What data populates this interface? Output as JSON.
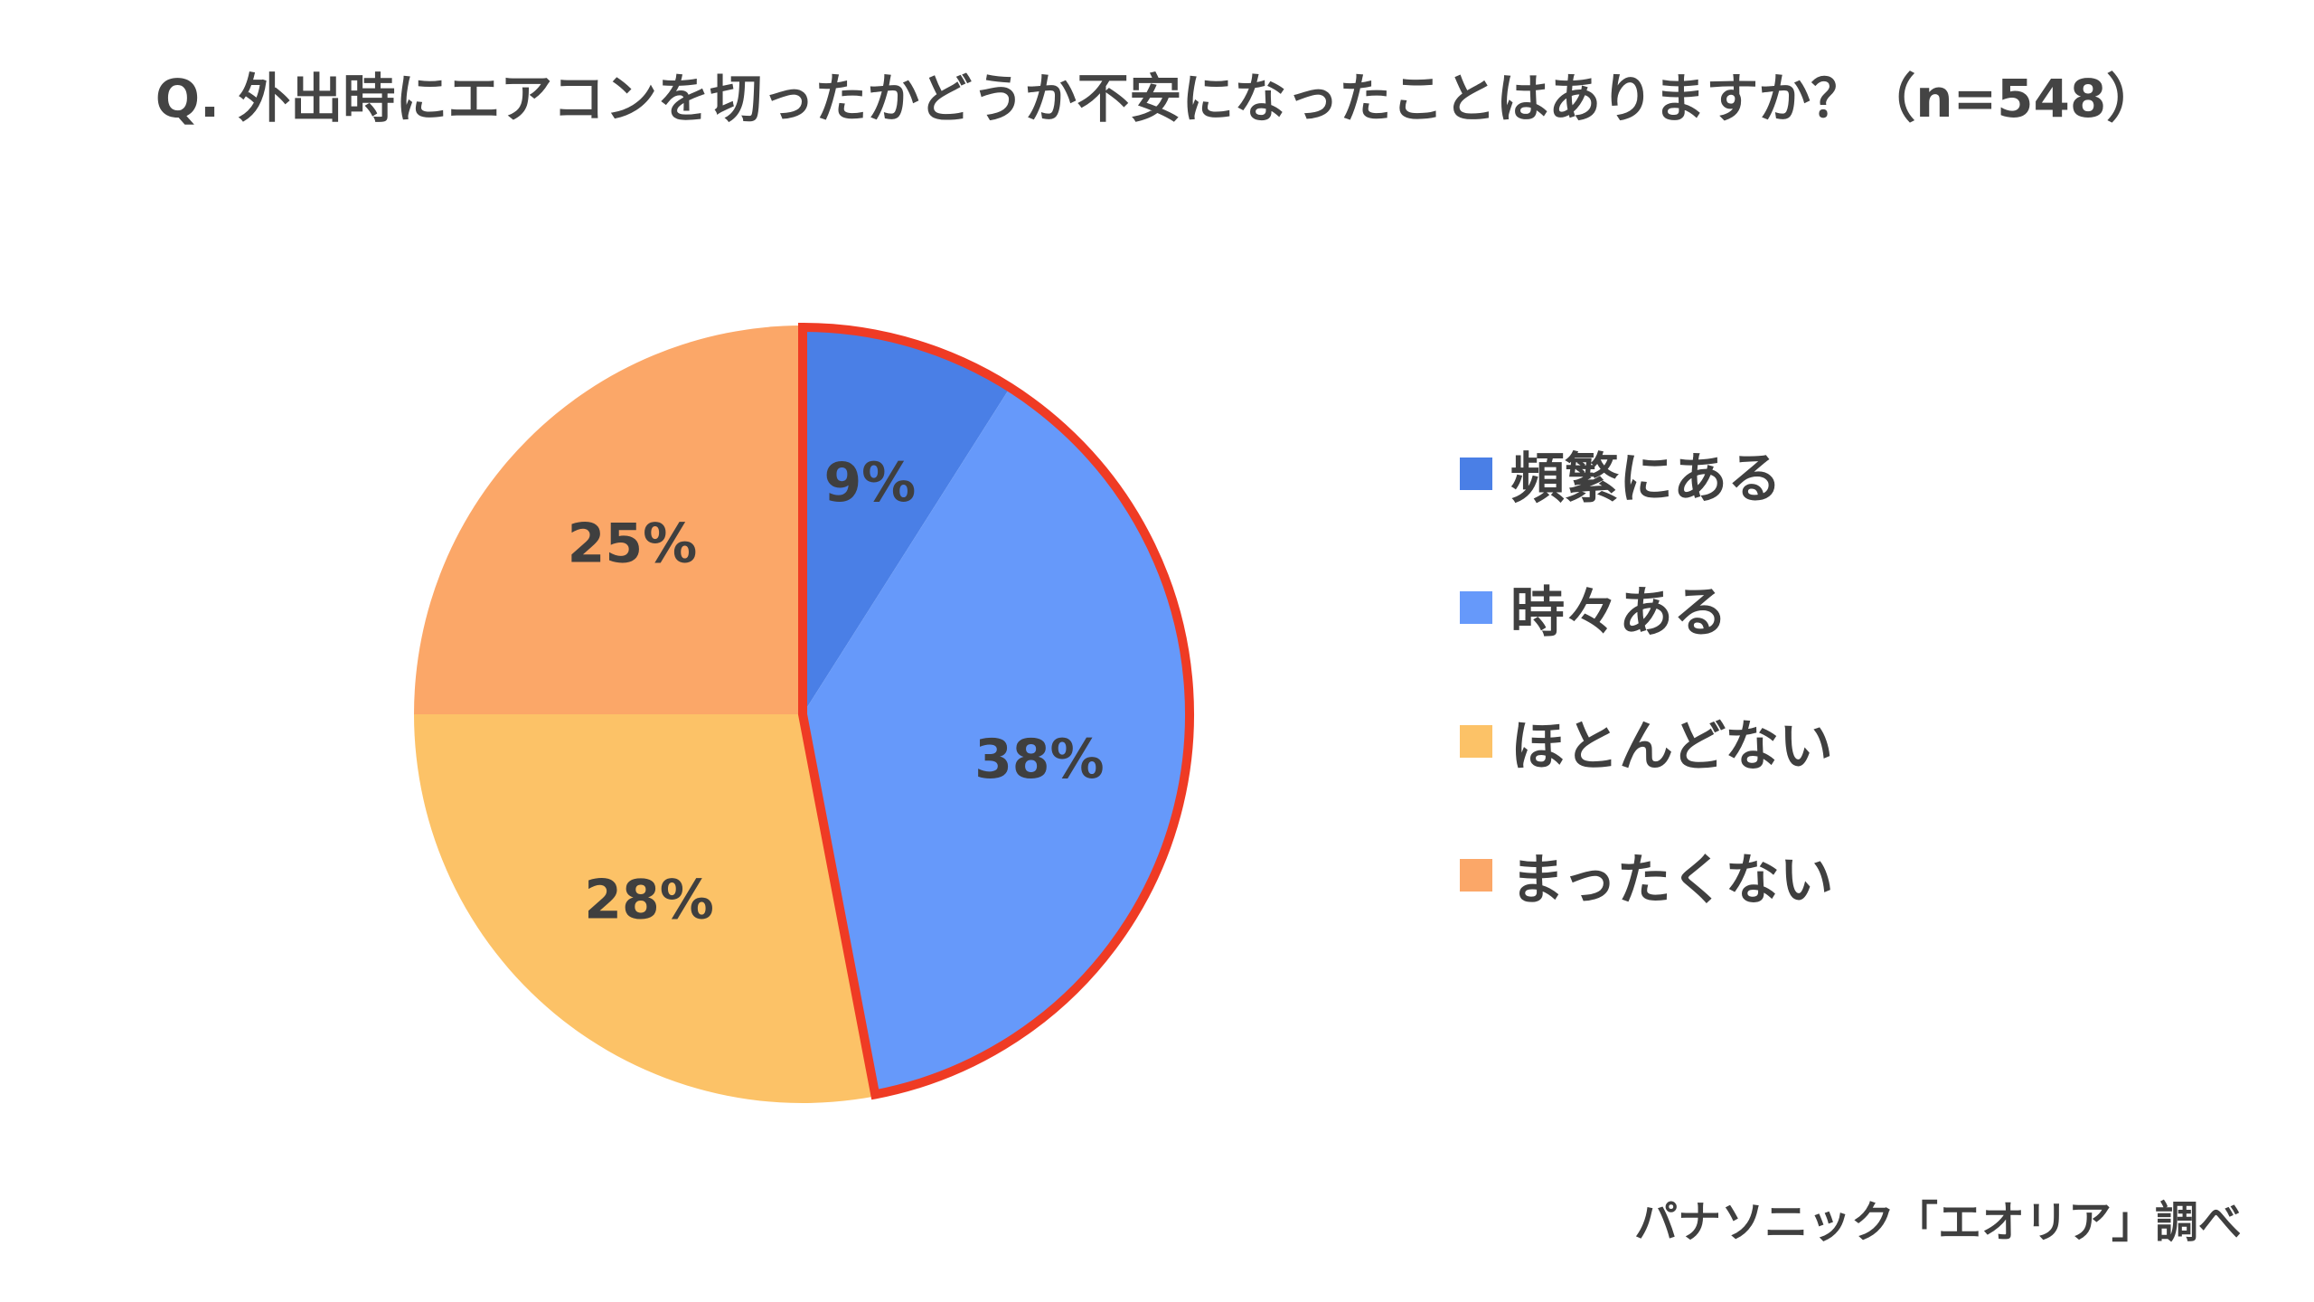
{
  "title": "Q. 外出時にエアコンを切ったかどうか不安になったことはありますか？（n=548）",
  "source": "パナソニック「エオリア」調べ",
  "highlight_color": "#ef3b24",
  "chart_data": {
    "type": "pie",
    "title": "Q. 外出時にエアコンを切ったかどうか不安になったことはありますか？（n=548）",
    "categories": [
      "頻繁にある",
      "時々ある",
      "ほとんどない",
      "まったくない"
    ],
    "values": [
      9,
      38,
      28,
      25
    ],
    "labels": [
      "9%",
      "38%",
      "28%",
      "25%"
    ],
    "colors": [
      "#4a7fe6",
      "#6699fa",
      "#fcc267",
      "#fba768"
    ],
    "highlighted": [
      "頻繁にある",
      "時々ある"
    ],
    "legend_position": "right",
    "start_angle": "12 o'clock",
    "direction": "clockwise"
  }
}
